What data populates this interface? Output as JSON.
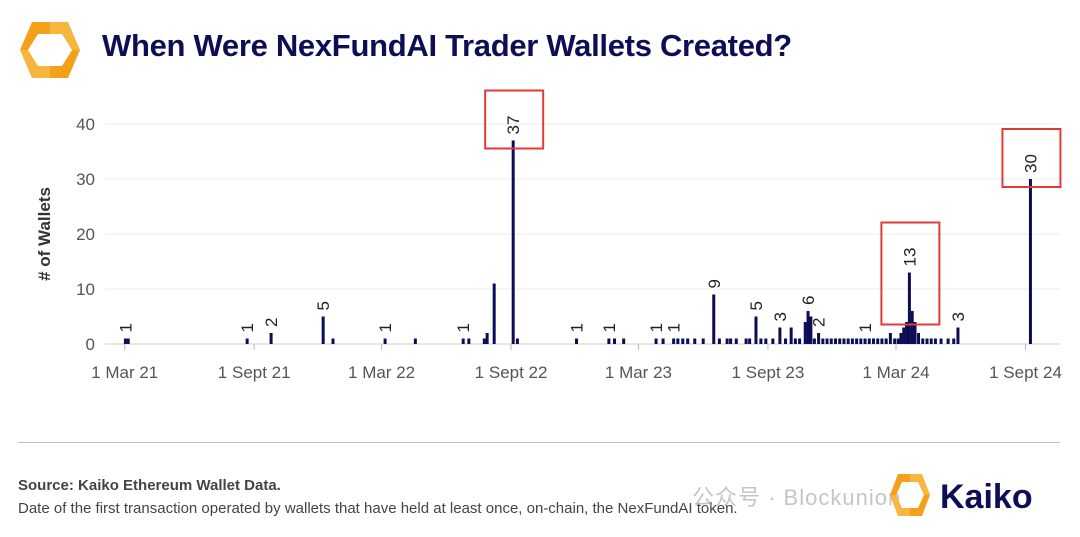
{
  "header": {
    "title": "When Were NexFundAI Trader Wallets Created?"
  },
  "footer": {
    "source": "Source: Kaiko Ethereum Wallet Data.",
    "note": "Date of the first transaction operated by wallets that have held at least once, on-chain, the NexFundAI token.",
    "brand": "Kaiko",
    "watermark": "公众号 · Blockunion"
  },
  "colors": {
    "bar": "#0d0d55",
    "highlight_box": "#e03a3a",
    "brand_orange": "#f5a01a",
    "title": "#0e0e57"
  },
  "chart_data": {
    "type": "bar",
    "title": "When Were NexFundAI Trader Wallets Created?",
    "xlabel": "",
    "ylabel": "# of Wallets",
    "ylim": [
      0,
      40
    ],
    "yticks": [
      0,
      10,
      20,
      30,
      40
    ],
    "grid": true,
    "legend": "none",
    "x_range": [
      "2021-02-01",
      "2024-10-20"
    ],
    "xticks": [
      {
        "date": "2021-03-01",
        "label": "1 Mar 21"
      },
      {
        "date": "2021-09-01",
        "label": "1 Sept 21"
      },
      {
        "date": "2022-03-01",
        "label": "1 Mar 22"
      },
      {
        "date": "2022-09-01",
        "label": "1 Sept 22"
      },
      {
        "date": "2023-03-01",
        "label": "1 Mar 23"
      },
      {
        "date": "2023-09-01",
        "label": "1 Sept 23"
      },
      {
        "date": "2024-03-01",
        "label": "1 Mar 24"
      },
      {
        "date": "2024-09-01",
        "label": "1 Sept 24"
      }
    ],
    "series": [
      {
        "values": [
          {
            "x": "2021-03-02",
            "y": 1,
            "label": "1"
          },
          {
            "x": "2021-03-06",
            "y": 1
          },
          {
            "x": "2021-08-22",
            "y": 1,
            "label": "1"
          },
          {
            "x": "2021-09-25",
            "y": 2,
            "label": "2"
          },
          {
            "x": "2021-12-08",
            "y": 5,
            "label": "5"
          },
          {
            "x": "2021-12-22",
            "y": 1
          },
          {
            "x": "2022-03-06",
            "y": 1,
            "label": "1"
          },
          {
            "x": "2022-04-18",
            "y": 1
          },
          {
            "x": "2022-06-25",
            "y": 1,
            "label": "1"
          },
          {
            "x": "2022-07-03",
            "y": 1
          },
          {
            "x": "2022-07-25",
            "y": 1
          },
          {
            "x": "2022-07-29",
            "y": 2
          },
          {
            "x": "2022-08-08",
            "y": 11
          },
          {
            "x": "2022-09-04",
            "y": 37,
            "label": "37"
          },
          {
            "x": "2022-09-10",
            "y": 1
          },
          {
            "x": "2022-12-03",
            "y": 1,
            "label": "1"
          },
          {
            "x": "2023-01-18",
            "y": 1,
            "label": "1"
          },
          {
            "x": "2023-01-26",
            "y": 1
          },
          {
            "x": "2023-02-08",
            "y": 1
          },
          {
            "x": "2023-03-26",
            "y": 1,
            "label": "1"
          },
          {
            "x": "2023-04-05",
            "y": 1
          },
          {
            "x": "2023-04-20",
            "y": 1,
            "label": "1"
          },
          {
            "x": "2023-04-26",
            "y": 1
          },
          {
            "x": "2023-05-03",
            "y": 1
          },
          {
            "x": "2023-05-10",
            "y": 1
          },
          {
            "x": "2023-05-20",
            "y": 1
          },
          {
            "x": "2023-06-01",
            "y": 1
          },
          {
            "x": "2023-06-16",
            "y": 9,
            "label": "9"
          },
          {
            "x": "2023-06-24",
            "y": 1
          },
          {
            "x": "2023-07-05",
            "y": 1
          },
          {
            "x": "2023-07-10",
            "y": 1
          },
          {
            "x": "2023-07-18",
            "y": 1
          },
          {
            "x": "2023-08-01",
            "y": 1
          },
          {
            "x": "2023-08-06",
            "y": 1
          },
          {
            "x": "2023-08-15",
            "y": 5,
            "label": "5"
          },
          {
            "x": "2023-08-22",
            "y": 1
          },
          {
            "x": "2023-08-29",
            "y": 1
          },
          {
            "x": "2023-09-08",
            "y": 1
          },
          {
            "x": "2023-09-18",
            "y": 3,
            "label": "3"
          },
          {
            "x": "2023-09-26",
            "y": 1
          },
          {
            "x": "2023-10-04",
            "y": 3
          },
          {
            "x": "2023-10-10",
            "y": 1
          },
          {
            "x": "2023-10-16",
            "y": 1
          },
          {
            "x": "2023-10-24",
            "y": 4
          },
          {
            "x": "2023-10-28",
            "y": 6,
            "label": "6"
          },
          {
            "x": "2023-11-01",
            "y": 5
          },
          {
            "x": "2023-11-06",
            "y": 1
          },
          {
            "x": "2023-11-12",
            "y": 2,
            "label": "2"
          },
          {
            "x": "2023-11-18",
            "y": 1
          },
          {
            "x": "2023-11-24",
            "y": 1
          },
          {
            "x": "2023-11-30",
            "y": 1
          },
          {
            "x": "2023-12-06",
            "y": 1
          },
          {
            "x": "2023-12-12",
            "y": 1
          },
          {
            "x": "2023-12-18",
            "y": 1
          },
          {
            "x": "2023-12-24",
            "y": 1
          },
          {
            "x": "2023-12-30",
            "y": 1
          },
          {
            "x": "2024-01-05",
            "y": 1
          },
          {
            "x": "2024-01-11",
            "y": 1
          },
          {
            "x": "2024-01-17",
            "y": 1,
            "label": "1"
          },
          {
            "x": "2024-01-23",
            "y": 1
          },
          {
            "x": "2024-01-29",
            "y": 1
          },
          {
            "x": "2024-02-04",
            "y": 1
          },
          {
            "x": "2024-02-10",
            "y": 1
          },
          {
            "x": "2024-02-16",
            "y": 1
          },
          {
            "x": "2024-02-22",
            "y": 2
          },
          {
            "x": "2024-02-28",
            "y": 1
          },
          {
            "x": "2024-03-04",
            "y": 1
          },
          {
            "x": "2024-03-08",
            "y": 2
          },
          {
            "x": "2024-03-12",
            "y": 3
          },
          {
            "x": "2024-03-16",
            "y": 4
          },
          {
            "x": "2024-03-20",
            "y": 13,
            "label": "13"
          },
          {
            "x": "2024-03-24",
            "y": 6
          },
          {
            "x": "2024-03-28",
            "y": 4
          },
          {
            "x": "2024-04-02",
            "y": 2
          },
          {
            "x": "2024-04-08",
            "y": 1
          },
          {
            "x": "2024-04-14",
            "y": 1
          },
          {
            "x": "2024-04-20",
            "y": 1
          },
          {
            "x": "2024-04-26",
            "y": 1
          },
          {
            "x": "2024-05-04",
            "y": 1
          },
          {
            "x": "2024-05-14",
            "y": 1
          },
          {
            "x": "2024-05-22",
            "y": 1
          },
          {
            "x": "2024-05-28",
            "y": 3,
            "label": "3"
          },
          {
            "x": "2024-09-08",
            "y": 30,
            "label": "30"
          }
        ]
      }
    ],
    "highlights": [
      "2022-09-04",
      "2024-03-20",
      "2024-09-08"
    ]
  }
}
